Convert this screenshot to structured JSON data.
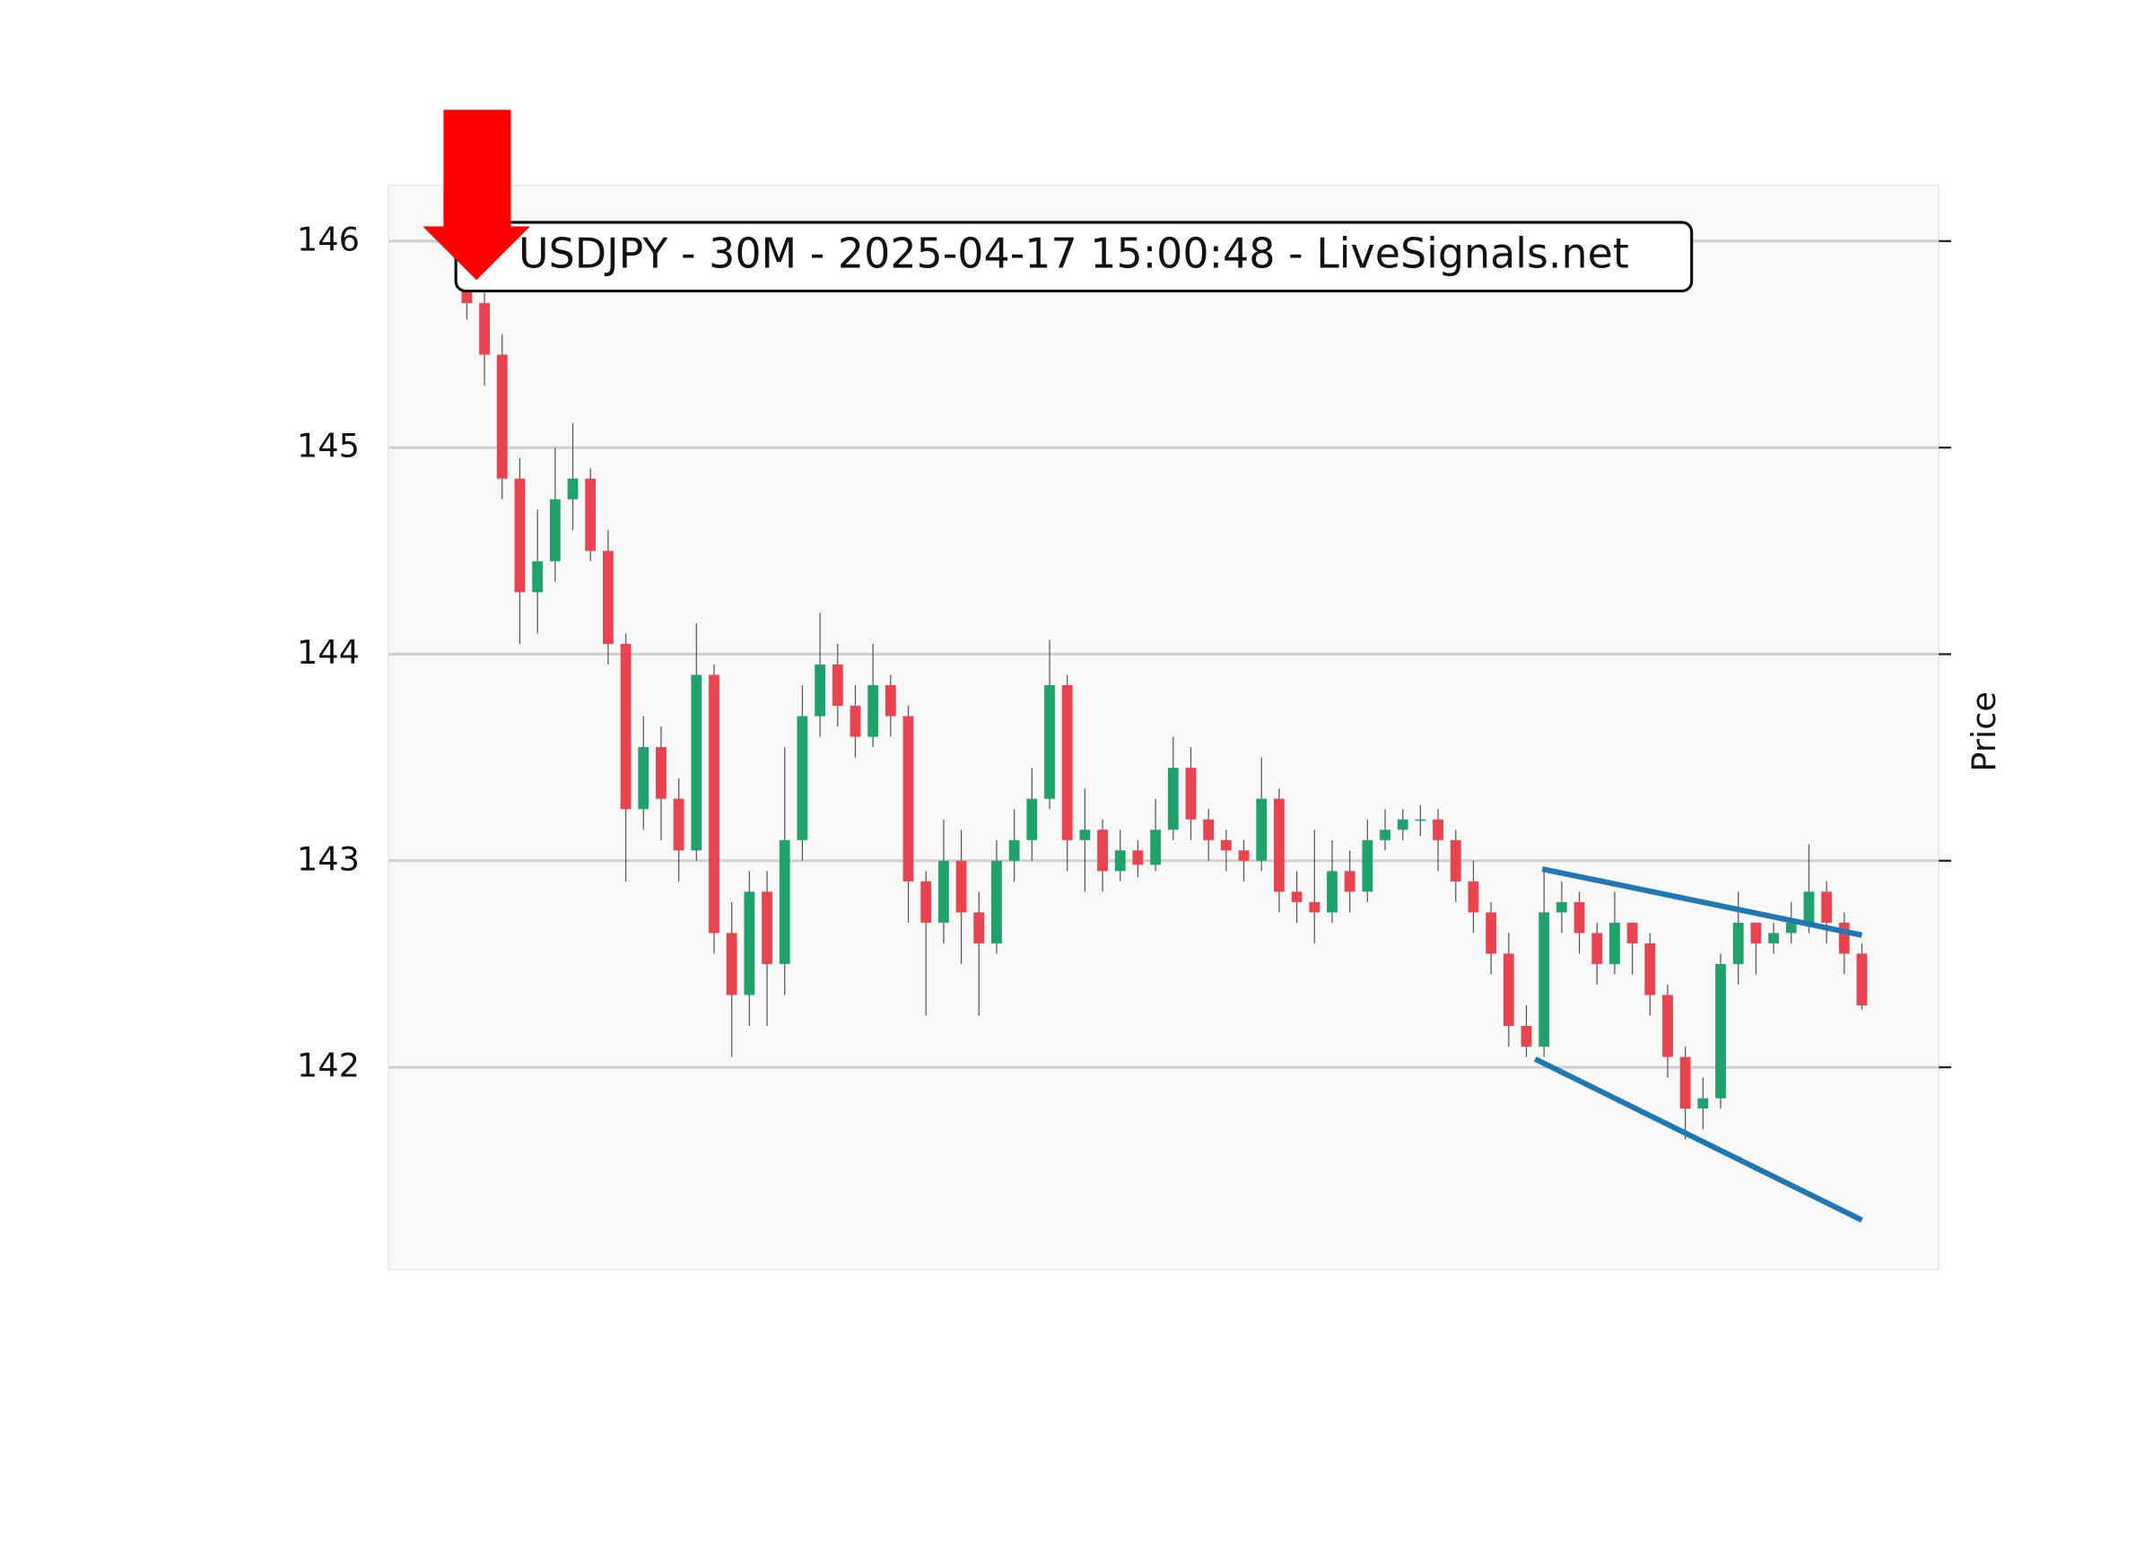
{
  "chart_data": {
    "type": "candlestick",
    "title": "USDJPY - 30M - 2025-04-17 15:00:48 - LiveSignals.net",
    "y_label": "Price",
    "ylim": [
      141.02,
      146.27
    ],
    "yticks": [
      142,
      143,
      144,
      145,
      146
    ],
    "grid": true,
    "up_color": "#1fa36b",
    "down_color": "#e8434f",
    "open": [
      145.85,
      145.7,
      145.45,
      144.85,
      144.3,
      144.45,
      144.75,
      144.85,
      144.5,
      144.05,
      143.25,
      143.55,
      143.3,
      143.05,
      143.9,
      142.65,
      142.35,
      142.85,
      142.5,
      143.1,
      143.7,
      143.95,
      143.75,
      143.6,
      143.85,
      143.7,
      142.9,
      142.7,
      143.0,
      142.75,
      142.6,
      143.0,
      143.1,
      143.3,
      143.85,
      143.1,
      143.15,
      142.95,
      143.05,
      142.98,
      143.15,
      143.45,
      143.2,
      143.1,
      143.05,
      143.0,
      143.3,
      142.85,
      142.8,
      142.75,
      142.95,
      142.85,
      143.1,
      143.15,
      143.2,
      143.2,
      143.1,
      142.9,
      142.75,
      142.55,
      142.2,
      142.1,
      142.75,
      142.8,
      142.65,
      142.5,
      142.7,
      142.6,
      142.35,
      142.05,
      141.8,
      141.85,
      142.5,
      142.7,
      142.6,
      142.65,
      142.7,
      142.85,
      142.7,
      142.55
    ],
    "high": [
      145.92,
      145.78,
      145.55,
      144.95,
      144.7,
      145.0,
      145.12,
      144.9,
      144.6,
      144.1,
      143.7,
      143.65,
      143.4,
      144.15,
      143.95,
      142.8,
      142.95,
      142.95,
      143.55,
      143.85,
      144.2,
      144.05,
      143.85,
      144.05,
      143.9,
      143.75,
      142.95,
      143.2,
      143.15,
      142.85,
      143.1,
      143.25,
      143.45,
      144.07,
      143.9,
      143.35,
      143.2,
      143.15,
      143.1,
      143.3,
      143.6,
      143.55,
      143.25,
      143.15,
      143.1,
      143.5,
      143.35,
      142.95,
      143.15,
      143.1,
      143.05,
      143.2,
      143.25,
      143.25,
      143.27,
      143.25,
      143.15,
      143.0,
      142.8,
      142.65,
      142.3,
      142.95,
      142.9,
      142.85,
      142.7,
      142.85,
      142.7,
      142.65,
      142.4,
      142.1,
      141.95,
      142.55,
      142.85,
      142.7,
      142.7,
      142.8,
      143.08,
      142.9,
      142.75,
      142.6
    ],
    "low": [
      145.62,
      145.3,
      144.75,
      144.05,
      144.1,
      144.35,
      144.6,
      144.45,
      143.95,
      142.9,
      143.15,
      143.1,
      142.9,
      143.0,
      142.55,
      142.05,
      142.2,
      142.2,
      142.35,
      143.0,
      143.6,
      143.65,
      143.5,
      143.55,
      143.6,
      142.7,
      142.25,
      142.6,
      142.5,
      142.25,
      142.55,
      142.9,
      143.0,
      143.25,
      142.95,
      142.85,
      142.85,
      142.9,
      142.92,
      142.95,
      143.1,
      143.1,
      143.0,
      142.95,
      142.9,
      142.95,
      142.75,
      142.7,
      142.6,
      142.7,
      142.75,
      142.8,
      143.05,
      143.1,
      143.12,
      142.95,
      142.8,
      142.65,
      142.45,
      142.1,
      142.05,
      142.05,
      142.65,
      142.55,
      142.4,
      142.45,
      142.45,
      142.25,
      141.95,
      141.65,
      141.7,
      141.8,
      142.4,
      142.45,
      142.55,
      142.6,
      142.65,
      142.6,
      142.45,
      142.28
    ],
    "close": [
      145.7,
      145.45,
      144.85,
      144.3,
      144.45,
      144.75,
      144.85,
      144.5,
      144.05,
      143.25,
      143.55,
      143.3,
      143.05,
      143.9,
      142.65,
      142.35,
      142.85,
      142.5,
      143.1,
      143.7,
      143.95,
      143.75,
      143.6,
      143.85,
      143.7,
      142.9,
      142.7,
      143.0,
      142.75,
      142.6,
      143.0,
      143.1,
      143.3,
      143.85,
      143.1,
      143.15,
      142.95,
      143.05,
      142.98,
      143.15,
      143.45,
      143.2,
      143.1,
      143.05,
      143.0,
      143.3,
      142.85,
      142.8,
      142.75,
      142.95,
      142.85,
      143.1,
      143.15,
      143.2,
      143.2,
      143.1,
      142.9,
      142.75,
      142.55,
      142.2,
      142.1,
      142.75,
      142.8,
      142.65,
      142.5,
      142.7,
      142.6,
      142.35,
      142.05,
      141.8,
      141.85,
      142.5,
      142.7,
      142.6,
      142.65,
      142.7,
      142.85,
      142.7,
      142.55,
      142.3
    ],
    "trendlines": [
      {
        "color": "#1f77b4",
        "x": [
          60.9,
          79
        ],
        "y": [
          142.96,
          142.64
        ]
      },
      {
        "color": "#1f77b4",
        "x": [
          60.5,
          79
        ],
        "y": [
          142.04,
          141.26
        ]
      }
    ]
  }
}
